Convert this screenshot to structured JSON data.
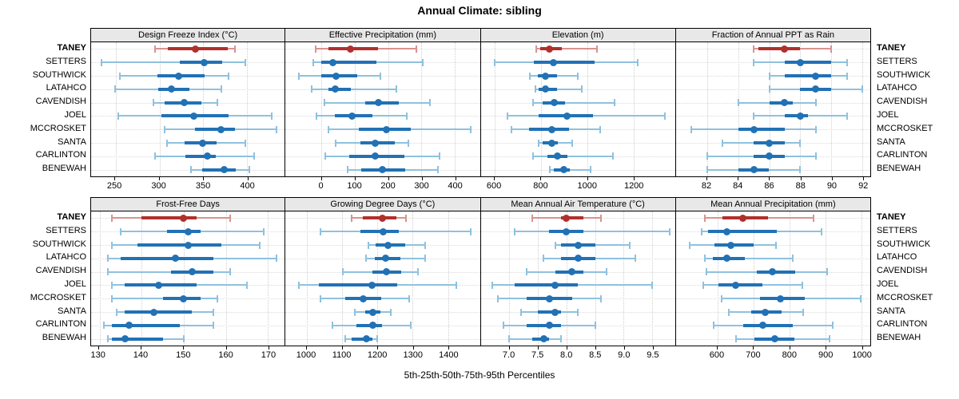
{
  "title": "Annual Climate: sibling",
  "caption": "5th-25th-50th-75th-95th Percentiles",
  "colors": {
    "blue_thick": "#2171B5",
    "blue_thin": "#8FC1DE",
    "red_thick": "#B0302C",
    "red_thin": "#D9928F",
    "grid_line": "#CFCFCF",
    "strip_bg": "#E8E8E8",
    "border": "#000000"
  },
  "chart_data": {
    "type": "percentile-dotplot",
    "percentile_levels": [
      5,
      25,
      50,
      75,
      95
    ],
    "rows": [
      "TANEY",
      "SETTERS",
      "SOUTHWICK",
      "LATAHCO",
      "CAVENDISH",
      "JOEL",
      "MCCROSKET",
      "SANTA",
      "CARLINTON",
      "BENEWAH"
    ],
    "highlight_row": "TANEY",
    "legend_note": "highlighted series TANEY drawn in red, siblings in blue",
    "panels": [
      {
        "title": "Design Freeze Index (°C)",
        "grid_row": 0,
        "xlim": [
          222,
          443
        ],
        "ticks": [
          250,
          300,
          350,
          400
        ],
        "tick_labels": [
          "250",
          "300",
          "350",
          "400"
        ],
        "values": [
          [
            295,
            310,
            341,
            378,
            386
          ],
          [
            234,
            323,
            351,
            372,
            398
          ],
          [
            255,
            298,
            322,
            352,
            379
          ],
          [
            249,
            299,
            314,
            334,
            371
          ],
          [
            293,
            306,
            328,
            348,
            366
          ],
          [
            253,
            302,
            339,
            379,
            428
          ],
          [
            306,
            341,
            370,
            386,
            434
          ],
          [
            309,
            329,
            349,
            365,
            398
          ],
          [
            295,
            330,
            355,
            364,
            408
          ],
          [
            336,
            349,
            374,
            387,
            403
          ]
        ]
      },
      {
        "title": "Effective Precipitation (mm)",
        "grid_row": 0,
        "xlim": [
          -108,
          476
        ],
        "ticks": [
          0,
          100,
          200,
          300,
          400
        ],
        "tick_labels": [
          "0",
          "100",
          "200",
          "300",
          "400"
        ],
        "values": [
          [
            -18,
            20,
            86,
            170,
            286
          ],
          [
            -24,
            0,
            34,
            164,
            304
          ],
          [
            -68,
            0,
            45,
            108,
            176
          ],
          [
            -30,
            20,
            42,
            88,
            224
          ],
          [
            8,
            132,
            170,
            232,
            326
          ],
          [
            -14,
            40,
            92,
            152,
            256
          ],
          [
            20,
            112,
            196,
            268,
            448
          ],
          [
            42,
            116,
            162,
            220,
            260
          ],
          [
            12,
            84,
            162,
            248,
            354
          ],
          [
            78,
            120,
            184,
            252,
            350
          ]
        ]
      },
      {
        "title": "Elevation (m)",
        "grid_row": 0,
        "xlim": [
          540,
          1380
        ],
        "ticks": [
          600,
          800,
          1000,
          1200
        ],
        "tick_labels": [
          "600",
          "800",
          "1000",
          "1200"
        ],
        "values": [
          [
            781,
            798,
            837,
            891,
            1043
          ],
          [
            602,
            771,
            855,
            1031,
            1217
          ],
          [
            751,
            786,
            819,
            869,
            960
          ],
          [
            775,
            791,
            819,
            871,
            977
          ],
          [
            766,
            806,
            859,
            905,
            1120
          ],
          [
            655,
            791,
            914,
            1026,
            1337
          ],
          [
            672,
            749,
            848,
            923,
            1057
          ],
          [
            789,
            808,
            848,
            874,
            935
          ],
          [
            766,
            829,
            871,
            914,
            1111
          ],
          [
            837,
            857,
            899,
            926,
            1014
          ]
        ]
      },
      {
        "title": "Fraction of Annual PPT as Rain",
        "grid_row": 0,
        "xlim": [
          80,
          92.5
        ],
        "ticks": [
          82,
          84,
          86,
          88,
          90,
          92
        ],
        "tick_labels": [
          "82",
          "84",
          "86",
          "88",
          "90",
          "92"
        ],
        "values": [
          [
            85,
            85.3,
            87,
            88,
            90
          ],
          [
            85,
            87,
            88,
            90,
            91
          ],
          [
            86,
            87,
            89,
            90,
            91
          ],
          [
            86,
            88,
            89,
            90,
            92
          ],
          [
            84,
            86,
            87,
            87.5,
            89
          ],
          [
            85,
            87,
            88,
            88.5,
            91
          ],
          [
            81,
            84,
            85,
            87,
            89
          ],
          [
            83,
            85,
            86,
            87,
            88
          ],
          [
            82,
            85,
            86,
            87,
            89
          ],
          [
            82,
            84,
            85,
            86,
            88
          ]
        ]
      },
      {
        "title": "Frost-Free Days",
        "grid_row": 1,
        "xlim": [
          128,
          174
        ],
        "ticks": [
          130,
          140,
          150,
          160,
          170
        ],
        "tick_labels": [
          "130",
          "140",
          "150",
          "160",
          "170"
        ],
        "values": [
          [
            133,
            140,
            150,
            153,
            161
          ],
          [
            135,
            146,
            151,
            154,
            169
          ],
          [
            133,
            139,
            151,
            159,
            168
          ],
          [
            132,
            135,
            148,
            157,
            172
          ],
          [
            132,
            147,
            152,
            157,
            161
          ],
          [
            133,
            136,
            144,
            153,
            165
          ],
          [
            133,
            145,
            150,
            154,
            158
          ],
          [
            134,
            136,
            143,
            152,
            157
          ],
          [
            131,
            133,
            137,
            149,
            157
          ],
          [
            132,
            133,
            136,
            145,
            150
          ]
        ]
      },
      {
        "title": "Growing Degree Days (°C)",
        "grid_row": 1,
        "xlim": [
          940,
          1490
        ],
        "ticks": [
          1000,
          1100,
          1200,
          1300,
          1400
        ],
        "tick_labels": [
          "1000",
          "1100",
          "1200",
          "1300",
          "1400"
        ],
        "values": [
          [
            1127,
            1158,
            1215,
            1253,
            1281
          ],
          [
            1040,
            1151,
            1217,
            1260,
            1464
          ],
          [
            1174,
            1196,
            1229,
            1279,
            1334
          ],
          [
            1168,
            1192,
            1223,
            1266,
            1334
          ],
          [
            1103,
            1186,
            1226,
            1268,
            1315
          ],
          [
            978,
            1034,
            1185,
            1257,
            1423
          ],
          [
            1040,
            1109,
            1161,
            1211,
            1291
          ],
          [
            1136,
            1166,
            1187,
            1209,
            1239
          ],
          [
            1072,
            1140,
            1187,
            1214,
            1294
          ],
          [
            1108,
            1128,
            1170,
            1185,
            1200
          ]
        ]
      },
      {
        "title": "Mean Annual Air Temperature (°C)",
        "grid_row": 1,
        "xlim": [
          6.5,
          9.9
        ],
        "ticks": [
          7.0,
          7.5,
          8.0,
          8.5,
          9.0,
          9.5
        ],
        "tick_labels": [
          "7.0",
          "7.5",
          "8.0",
          "8.5",
          "9.0",
          "9.5"
        ],
        "values": [
          [
            7.4,
            7.9,
            8.0,
            8.3,
            8.6
          ],
          [
            7.1,
            7.7,
            8.0,
            8.3,
            9.8
          ],
          [
            7.8,
            7.9,
            8.2,
            8.5,
            9.1
          ],
          [
            7.6,
            7.9,
            8.2,
            8.5,
            9.2
          ],
          [
            7.3,
            7.8,
            8.1,
            8.3,
            8.7
          ],
          [
            6.7,
            7.1,
            7.8,
            8.2,
            9.5
          ],
          [
            6.8,
            7.3,
            7.7,
            8.1,
            8.6
          ],
          [
            7.2,
            7.5,
            7.8,
            7.9,
            8.2
          ],
          [
            6.9,
            7.3,
            7.7,
            7.9,
            8.5
          ],
          [
            7.0,
            7.4,
            7.6,
            7.7,
            7.9
          ]
        ]
      },
      {
        "title": "Mean Annual Precipitation (mm)",
        "grid_row": 1,
        "xlim": [
          485,
          1025
        ],
        "ticks": [
          600,
          700,
          800,
          900,
          1000
        ],
        "tick_labels": [
          "600",
          "700",
          "800",
          "900",
          "1000"
        ],
        "values": [
          [
            565,
            615,
            670,
            740,
            868
          ],
          [
            556,
            575,
            626,
            765,
            890
          ],
          [
            523,
            593,
            637,
            701,
            763
          ],
          [
            565,
            587,
            626,
            677,
            810
          ],
          [
            570,
            709,
            754,
            817,
            905
          ],
          [
            560,
            604,
            650,
            725,
            836
          ],
          [
            611,
            719,
            775,
            843,
            999
          ],
          [
            633,
            694,
            732,
            778,
            838
          ],
          [
            591,
            672,
            726,
            810,
            921
          ],
          [
            653,
            703,
            760,
            815,
            911
          ]
        ]
      }
    ]
  }
}
